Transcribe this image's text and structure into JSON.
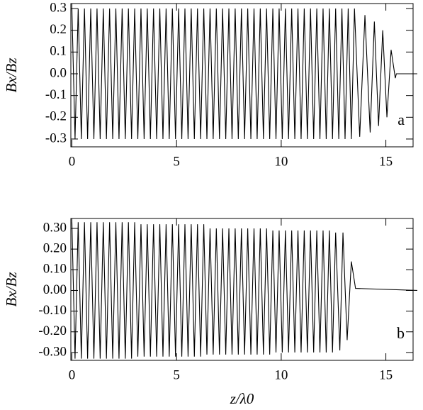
{
  "chart_data": [
    {
      "type": "line",
      "y_label": "Bx/Bz",
      "annotation": "a",
      "xlim": [
        -0.05,
        16.3
      ],
      "xticks": [
        0,
        5,
        10,
        15
      ],
      "ylim": [
        -0.336,
        0.323
      ],
      "yticks": [
        0.3,
        0.2,
        0.1,
        {
          "value": 0,
          "label": "0.0"
        },
        -0.1,
        -0.2,
        -0.3
      ],
      "series": [
        {
          "color": "#000000",
          "x": [
            0,
            0.15,
            0.3,
            0.45,
            0.6,
            0.75,
            0.9,
            1.05,
            1.2,
            1.35,
            1.5,
            1.65,
            1.8,
            1.95,
            2.1,
            2.25,
            2.4,
            2.55,
            2.7,
            2.85,
            3,
            3.15,
            3.3,
            3.45,
            3.6,
            3.75,
            3.9,
            4.05,
            4.2,
            4.35,
            4.5,
            4.65,
            4.8,
            4.95,
            5.1,
            5.25,
            5.4,
            5.55,
            5.7,
            5.85,
            6,
            6.15,
            6.3,
            6.45,
            6.6,
            6.75,
            6.9,
            7.05,
            7.2,
            7.35,
            7.5,
            7.65,
            7.8,
            7.95,
            8.1,
            8.25,
            8.4,
            8.55,
            8.7,
            8.85,
            9,
            9.15,
            9.3,
            9.45,
            9.6,
            9.75,
            9.9,
            10.05,
            10.2,
            10.35,
            10.5,
            10.65,
            10.8,
            10.95,
            11.1,
            11.25,
            11.4,
            11.55,
            11.7,
            11.85,
            12,
            12.15,
            12.3,
            12.45,
            12.6,
            12.75,
            12.9,
            13.05,
            13.2,
            13.35,
            13.5,
            13.75,
            14,
            14.25,
            14.45,
            14.65,
            14.85,
            15.05,
            15.25,
            15.45,
            15.5,
            16.5
          ],
          "values": [
            0.3,
            -0.3,
            0.3,
            -0.3,
            0.3,
            -0.3,
            0.3,
            -0.3,
            0.3,
            -0.3,
            0.3,
            -0.3,
            0.3,
            -0.3,
            0.3,
            -0.3,
            0.3,
            -0.3,
            0.3,
            -0.3,
            0.3,
            -0.3,
            0.3,
            -0.3,
            0.3,
            -0.3,
            0.3,
            -0.3,
            0.3,
            -0.3,
            0.3,
            -0.3,
            0.3,
            -0.3,
            0.3,
            -0.3,
            0.3,
            -0.3,
            0.3,
            -0.3,
            0.3,
            -0.3,
            0.3,
            -0.3,
            0.3,
            -0.3,
            0.3,
            -0.3,
            0.3,
            -0.3,
            0.3,
            -0.3,
            0.3,
            -0.3,
            0.3,
            -0.3,
            0.3,
            -0.3,
            0.3,
            -0.3,
            0.3,
            -0.3,
            0.3,
            -0.3,
            0.3,
            -0.3,
            0.3,
            -0.3,
            0.3,
            -0.3,
            0.3,
            -0.3,
            0.3,
            -0.3,
            0.3,
            -0.3,
            0.3,
            -0.3,
            0.3,
            -0.3,
            0.3,
            -0.3,
            0.3,
            -0.3,
            0.3,
            -0.3,
            0.3,
            -0.3,
            0.3,
            -0.3,
            0.3,
            -0.29,
            0.27,
            -0.27,
            0.24,
            -0.24,
            0.2,
            -0.2,
            0.11,
            -0.02,
            0,
            0
          ]
        }
      ]
    },
    {
      "type": "line",
      "y_label": "Bx/Bz",
      "x_label": "z/λ0",
      "annotation": "b",
      "xlim": [
        -0.05,
        16.3
      ],
      "xticks": [
        0,
        5,
        10,
        15
      ],
      "ylim": [
        -0.338,
        0.348
      ],
      "yticks": [
        {
          "value": 0.3,
          "label": "0.30"
        },
        {
          "value": 0.2,
          "label": "0.20"
        },
        {
          "value": 0.1,
          "label": "0.10"
        },
        {
          "value": 0,
          "label": "0.00"
        },
        {
          "value": -0.1,
          "label": "-0.10"
        },
        {
          "value": -0.2,
          "label": "-0.20"
        },
        {
          "value": -0.3,
          "label": "-0.30"
        }
      ],
      "series": [
        {
          "color": "#000000",
          "x": [
            0,
            0.15,
            0.3,
            0.45,
            0.6,
            0.75,
            0.9,
            1.05,
            1.2,
            1.35,
            1.5,
            1.65,
            1.8,
            1.95,
            2.1,
            2.25,
            2.4,
            2.55,
            2.7,
            2.85,
            3,
            3.15,
            3.3,
            3.45,
            3.6,
            3.75,
            3.9,
            4.05,
            4.2,
            4.35,
            4.5,
            4.65,
            4.8,
            4.95,
            5.1,
            5.25,
            5.4,
            5.55,
            5.7,
            5.85,
            6,
            6.15,
            6.3,
            6.45,
            6.6,
            6.75,
            6.9,
            7.05,
            7.2,
            7.35,
            7.5,
            7.65,
            7.8,
            7.95,
            8.1,
            8.25,
            8.4,
            8.55,
            8.7,
            8.85,
            9,
            9.15,
            9.3,
            9.45,
            9.6,
            9.75,
            9.9,
            10.05,
            10.2,
            10.35,
            10.5,
            10.65,
            10.8,
            10.95,
            11.1,
            11.25,
            11.4,
            11.55,
            11.7,
            11.85,
            12,
            12.15,
            12.3,
            12.45,
            12.6,
            12.8,
            12.95,
            13.15,
            13.35,
            13.55,
            16.5
          ],
          "values": [
            0.33,
            -0.33,
            0.33,
            -0.33,
            0.33,
            -0.33,
            0.33,
            -0.33,
            0.33,
            -0.33,
            0.33,
            -0.33,
            0.33,
            -0.33,
            0.33,
            -0.33,
            0.33,
            -0.33,
            0.33,
            -0.33,
            0.33,
            -0.32,
            0.32,
            -0.32,
            0.32,
            -0.32,
            0.32,
            -0.32,
            0.32,
            -0.32,
            0.32,
            -0.32,
            0.32,
            -0.32,
            0.32,
            -0.32,
            0.32,
            -0.32,
            0.32,
            -0.32,
            0.32,
            -0.32,
            0.32,
            -0.31,
            0.3,
            -0.31,
            0.3,
            -0.31,
            0.3,
            -0.31,
            0.3,
            -0.31,
            0.3,
            -0.31,
            0.3,
            -0.31,
            0.3,
            -0.31,
            0.3,
            -0.31,
            0.3,
            -0.31,
            0.3,
            -0.31,
            0.29,
            -0.3,
            0.29,
            -0.3,
            0.29,
            -0.3,
            0.29,
            -0.3,
            0.29,
            -0.3,
            0.29,
            -0.3,
            0.29,
            -0.3,
            0.29,
            -0.3,
            0.29,
            -0.3,
            0.29,
            -0.3,
            0.28,
            -0.29,
            0.28,
            -0.24,
            0.14,
            0.01,
            0
          ]
        }
      ]
    }
  ]
}
